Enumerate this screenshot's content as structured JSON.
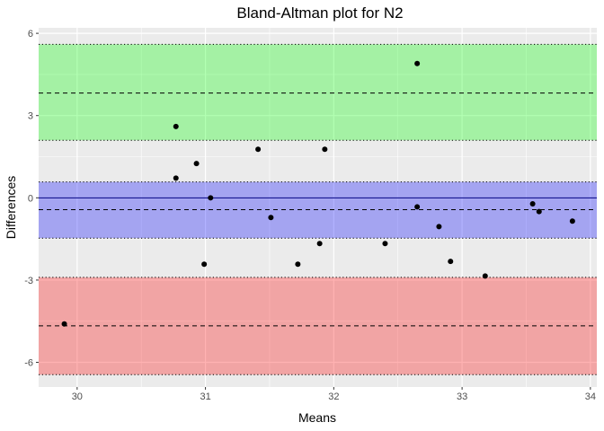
{
  "chart_data": {
    "type": "scatter",
    "title": "Bland-Altman plot for N2",
    "xlabel": "Means",
    "ylabel": "Differences",
    "xlim": [
      29.7,
      34.05
    ],
    "ylim": [
      -6.9,
      6.2
    ],
    "x_ticks": [
      30,
      31,
      32,
      33,
      34
    ],
    "y_ticks": [
      -6,
      -3,
      0,
      3,
      6
    ],
    "grid": true,
    "points": [
      {
        "x": 29.9,
        "y": -4.6
      },
      {
        "x": 30.77,
        "y": 2.6
      },
      {
        "x": 30.77,
        "y": 0.72
      },
      {
        "x": 30.93,
        "y": 1.25
      },
      {
        "x": 30.99,
        "y": -2.42
      },
      {
        "x": 31.04,
        "y": 0.0
      },
      {
        "x": 31.41,
        "y": 1.77
      },
      {
        "x": 31.51,
        "y": -0.72
      },
      {
        "x": 31.72,
        "y": -2.42
      },
      {
        "x": 31.89,
        "y": -1.67
      },
      {
        "x": 31.93,
        "y": 1.77
      },
      {
        "x": 32.4,
        "y": -1.67
      },
      {
        "x": 32.65,
        "y": 4.9
      },
      {
        "x": 32.65,
        "y": -0.33
      },
      {
        "x": 32.82,
        "y": -1.05
      },
      {
        "x": 32.91,
        "y": -2.32
      },
      {
        "x": 33.18,
        "y": -2.85
      },
      {
        "x": 33.55,
        "y": -0.22
      },
      {
        "x": 33.6,
        "y": -0.5
      },
      {
        "x": 33.86,
        "y": -0.85
      }
    ],
    "bands": [
      {
        "name": "upper limit of agreement",
        "lower": 2.1,
        "upper": 5.6,
        "center": 3.82,
        "color": "#00ff00"
      },
      {
        "name": "mean difference",
        "lower": -1.47,
        "upper": 0.58,
        "center": -0.43,
        "color": "#0000ff"
      },
      {
        "name": "lower limit of agreement",
        "lower": -6.45,
        "upper": -2.9,
        "center": -4.67,
        "color": "#ff0000"
      }
    ],
    "zero_line": 0,
    "zero_line_color": "#000080"
  }
}
